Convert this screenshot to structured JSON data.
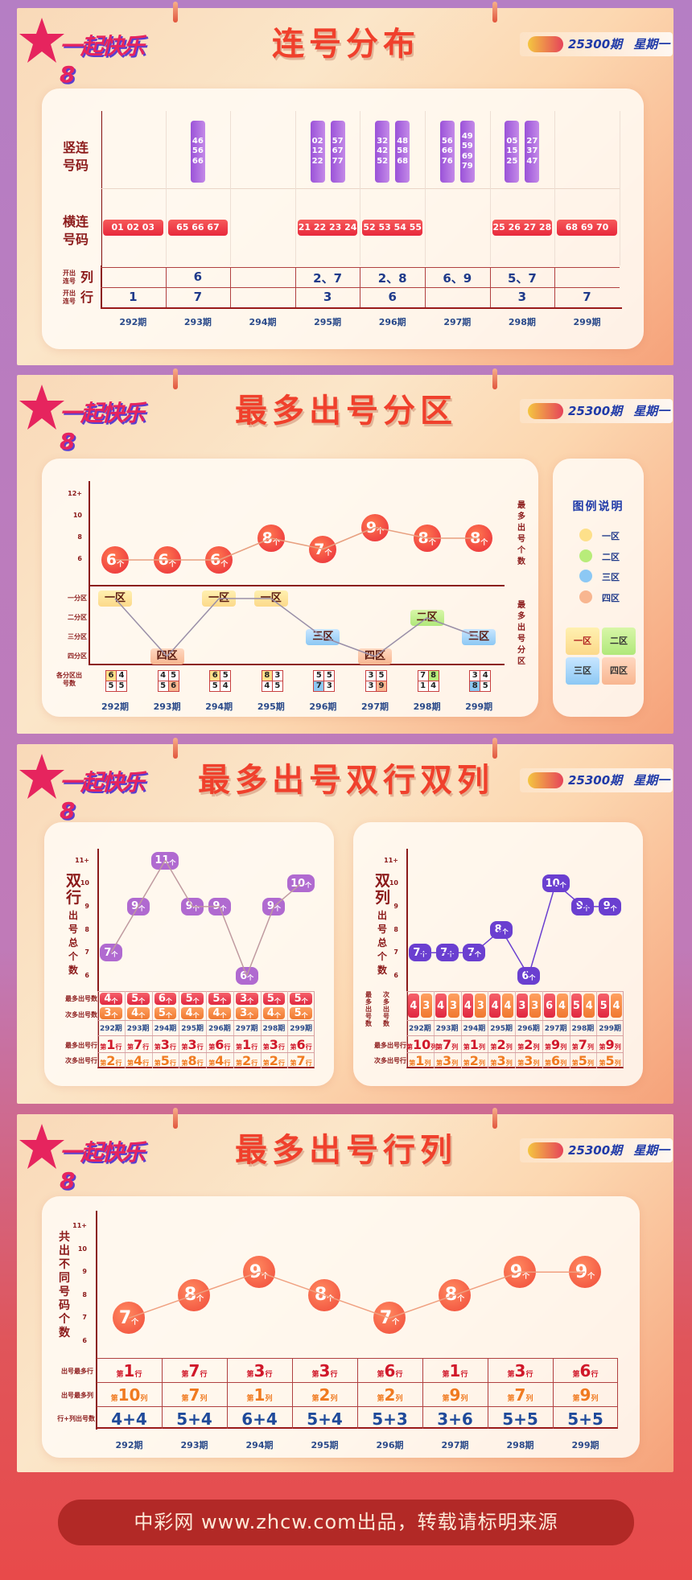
{
  "logo_text": "一起快乐8",
  "badge": {
    "issue": "25300期",
    "weekday": "星期一"
  },
  "periods": [
    "292期",
    "293期",
    "294期",
    "295期",
    "296期",
    "297期",
    "298期",
    "299期"
  ],
  "unit_ge": "个",
  "ordinal_prefix": "第",
  "unit_row": "行",
  "unit_col": "列",
  "consecutive": {
    "title": "连号分布",
    "label_vertical": "竖连号码",
    "label_horizontal": "横连号码",
    "label_prefix": "开出连号",
    "label_col": "列",
    "label_row": "行",
    "vertical": [
      [],
      [
        [
          "46",
          "56",
          "66"
        ]
      ],
      [],
      [
        [
          "02",
          "12",
          "22"
        ],
        [
          "57",
          "67",
          "77"
        ]
      ],
      [
        [
          "32",
          "42",
          "52"
        ],
        [
          "48",
          "58",
          "68"
        ]
      ],
      [
        [
          "56",
          "66",
          "76"
        ],
        [
          "49",
          "59",
          "69",
          "79"
        ]
      ],
      [
        [
          "05",
          "15",
          "25"
        ],
        [
          "27",
          "37",
          "47"
        ]
      ],
      []
    ],
    "horizontal": [
      "01 02 03",
      "65 66 67",
      "",
      "21 22 23 24",
      "52 53 54 55",
      "",
      "25 26 27 28",
      "68 69 70"
    ],
    "col_values": [
      "",
      "6",
      "",
      "2、7",
      "2、8",
      "6、9",
      "5、7",
      ""
    ],
    "row_values": [
      "1",
      "7",
      "",
      "3",
      "6",
      "",
      "3",
      "7"
    ]
  },
  "zones": {
    "title": "最多出号分区",
    "yticks": [
      "12+",
      "10",
      "8",
      "6"
    ],
    "zone_axis": [
      "一分区",
      "二分区",
      "三分区",
      "四分区"
    ],
    "side_label_top": "最多出号个数",
    "side_label_bottom": "最多出号分区",
    "count_label": "各分区出号数",
    "legend_title": "图例说明",
    "legend": [
      {
        "label": "一区",
        "color": "#fde08a"
      },
      {
        "label": "二区",
        "color": "#b8ec7a"
      },
      {
        "label": "三区",
        "color": "#8cc8f4"
      },
      {
        "label": "四区",
        "color": "#f8b690"
      }
    ]
  },
  "double": {
    "title": "最多出号双行双列",
    "yticks": [
      "11+",
      "10",
      "9",
      "8",
      "7",
      "6"
    ],
    "left": {
      "axis_big": "双行",
      "axis_small": "出号总个数",
      "label_max": "最多出号数",
      "label_second": "次多出号数",
      "label_row_max": "最多出号行",
      "label_row_second": "次多出号行",
      "color": "#b06ad0"
    },
    "right": {
      "axis_big": "双列",
      "axis_small": "出号总个数",
      "label_max": "最多出号数",
      "label_second": "次多出号数",
      "label_row_max": "最多出号行",
      "label_row_second": "次多出号行",
      "color": "#6a3fd0"
    }
  },
  "rowcol": {
    "title": "最多出号行列",
    "yticks": [
      "11+",
      "10",
      "9",
      "8",
      "7",
      "6"
    ],
    "axis_label": "共出不同号码个数",
    "label_row": "出号最多行",
    "label_col": "出号最多列",
    "label_sum": "行+列出号数"
  },
  "footer": "中彩网 www.zhcw.com出品，转载请标明来源",
  "chart_data": [
    {
      "type": "line",
      "categories": [
        "292期",
        "293期",
        "294期",
        "295期",
        "296期",
        "297期",
        "298期",
        "299期"
      ],
      "values": [
        6,
        6,
        6,
        8,
        7,
        9,
        8,
        8
      ],
      "ylim": [
        6,
        12
      ],
      "zone_series": [
        "一区",
        "四区",
        "一区",
        "一区",
        "三区",
        "四区",
        "二区",
        "三区"
      ],
      "zone_counts": [
        [
          6,
          4,
          5,
          5
        ],
        [
          4,
          5,
          5,
          6
        ],
        [
          6,
          5,
          5,
          4
        ],
        [
          8,
          3,
          4,
          5
        ],
        [
          5,
          5,
          7,
          3
        ],
        [
          3,
          5,
          3,
          9
        ],
        [
          7,
          8,
          1,
          4
        ],
        [
          3,
          4,
          8,
          5
        ]
      ]
    },
    {
      "type": "line",
      "categories": [
        "292期",
        "293期",
        "294期",
        "295期",
        "296期",
        "297期",
        "298期",
        "299期"
      ],
      "values": [
        7,
        9,
        11,
        9,
        9,
        6,
        9,
        10
      ],
      "ylim": [
        6,
        11
      ],
      "max_count": [
        4,
        5,
        6,
        5,
        5,
        3,
        5,
        5
      ],
      "second_count": [
        3,
        4,
        5,
        4,
        4,
        3,
        4,
        5
      ],
      "max_row": [
        1,
        7,
        3,
        3,
        6,
        1,
        3,
        6
      ],
      "second_row": [
        2,
        4,
        5,
        8,
        4,
        2,
        2,
        7
      ]
    },
    {
      "type": "line",
      "categories": [
        "292期",
        "293期",
        "294期",
        "295期",
        "296期",
        "297期",
        "298期",
        "299期"
      ],
      "values": [
        7,
        7,
        7,
        8,
        6,
        10,
        9,
        9
      ],
      "ylim": [
        6,
        11
      ],
      "max_count": [
        4,
        4,
        4,
        4,
        3,
        6,
        5,
        5
      ],
      "second_count": [
        3,
        3,
        3,
        4,
        3,
        4,
        4,
        4
      ],
      "max_col": [
        10,
        7,
        1,
        2,
        2,
        9,
        7,
        9
      ],
      "second_col": [
        1,
        3,
        2,
        3,
        3,
        6,
        5,
        5
      ]
    },
    {
      "type": "line",
      "categories": [
        "292期",
        "293期",
        "294期",
        "295期",
        "296期",
        "297期",
        "298期",
        "299期"
      ],
      "values": [
        7,
        8,
        9,
        8,
        7,
        8,
        9,
        9
      ],
      "ylim": [
        6,
        11
      ],
      "max_row": [
        1,
        7,
        3,
        3,
        6,
        1,
        3,
        6
      ],
      "max_col": [
        10,
        7,
        1,
        2,
        2,
        9,
        7,
        9
      ],
      "sum": [
        "4+4",
        "5+4",
        "6+4",
        "5+4",
        "5+3",
        "3+6",
        "5+5",
        "5+5"
      ]
    }
  ]
}
